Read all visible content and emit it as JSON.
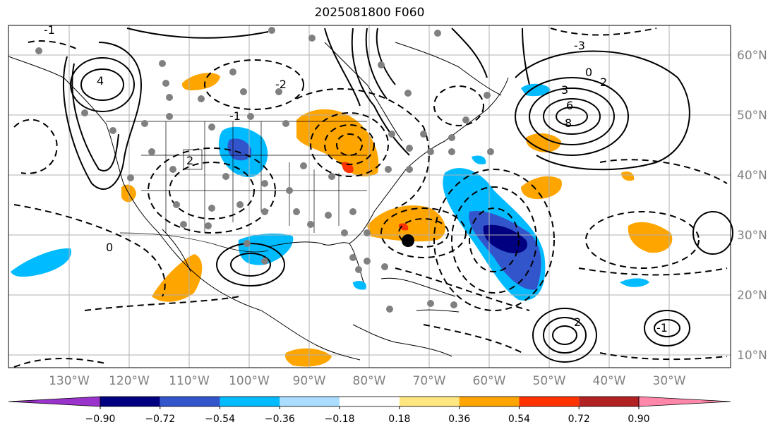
{
  "title": "2025081800 F060",
  "lon_labels": [
    "130°W",
    "120°W",
    "110°W",
    "100°W",
    "90°W",
    "80°W",
    "70°W",
    "60°W",
    "50°W",
    "40°W",
    "30°W"
  ],
  "lat_labels": [
    "60°N",
    "50°N",
    "40°N",
    "30°N",
    "20°N",
    "10°N"
  ],
  "colorbar": {
    "ticks": [
      "−0.90",
      "−0.72",
      "−0.54",
      "−0.36",
      "−0.18",
      "0.18",
      "0.36",
      "0.54",
      "0.72",
      "0.90"
    ],
    "colors": [
      "#9933cc",
      "#000080",
      "#3355cc",
      "#00bbff",
      "#aaddff",
      "#ffffff",
      "#ffe680",
      "#ffa500",
      "#ff3300",
      "#b22222",
      "#ff88aa"
    ]
  },
  "contour_labels": [
    "-1",
    "2",
    "-2",
    "4",
    "-3",
    "3",
    "2",
    "6",
    "8",
    "0",
    "0",
    "-1",
    "2",
    "-1"
  ],
  "colors": {
    "gridline": "#b0b0b0",
    "station_dot": "#808080",
    "center_marker": "#000000"
  }
}
